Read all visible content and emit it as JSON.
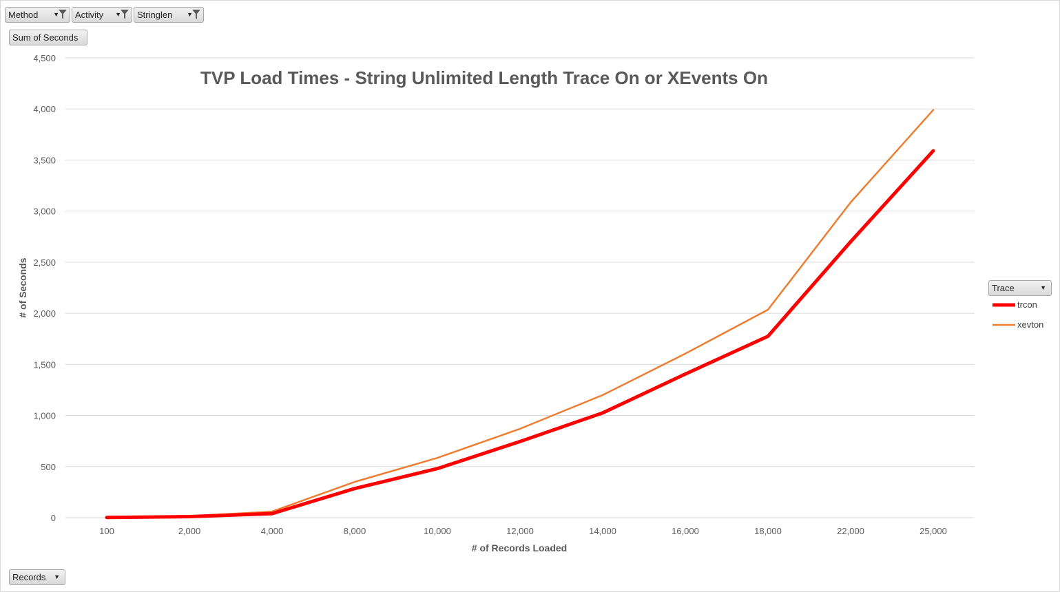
{
  "filters": [
    {
      "label": "Method"
    },
    {
      "label": "Activity"
    },
    {
      "label": "Stringlen"
    }
  ],
  "value_field": "Sum of Seconds",
  "axis_field": "Records",
  "legend_field": "Trace",
  "chart_data": {
    "type": "line",
    "title": "TVP Load Times - String Unlimited Length Trace On or XEvents On",
    "xlabel": "# of Records Loaded",
    "ylabel": "# of Seconds",
    "categories": [
      "100",
      "2,000",
      "4,000",
      "8,000",
      "10,000",
      "12,000",
      "14,000",
      "16,000",
      "18,000",
      "22,000",
      "25,000"
    ],
    "ylim": [
      0,
      4500
    ],
    "yticks": [
      0,
      500,
      1000,
      1500,
      2000,
      2500,
      3000,
      3500,
      4000,
      4500
    ],
    "ytick_labels": [
      "0",
      "500",
      "1,000",
      "1,500",
      "2,000",
      "2,500",
      "3,000",
      "3,500",
      "4,000",
      "4,500"
    ],
    "grid": true,
    "legend_position": "right",
    "series": [
      {
        "name": "trcon",
        "color": "#ff0000",
        "values": [
          2,
          10,
          40,
          285,
          480,
          745,
          1025,
          1405,
          1775,
          2700,
          3590
        ]
      },
      {
        "name": "xevton",
        "color": "#ed7d31",
        "values": [
          3,
          15,
          60,
          350,
          585,
          870,
          1200,
          1605,
          2035,
          3085,
          3990
        ]
      }
    ]
  }
}
